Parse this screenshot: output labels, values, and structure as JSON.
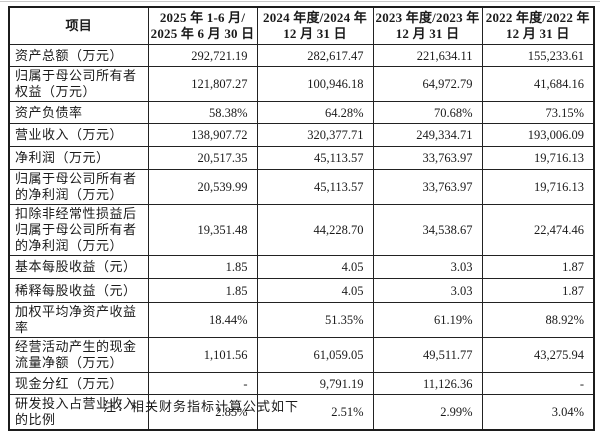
{
  "page": {
    "note": "注：相关财务指标计算公式如下"
  },
  "colors": {
    "background": "#ffffff",
    "border": "#1c1c1c",
    "text": "#1a1a1a"
  },
  "table": {
    "headers": [
      "项目",
      "2025 年 1-6 月/\n2025 年 6 月 30 日",
      "2024 年度/2024 年\n12 月 31 日",
      "2023 年度/2023 年\n12 月 31 日",
      "2022 年度/2022 年\n12 月 31 日"
    ],
    "rows": [
      {
        "label": "资产总额（万元）",
        "values": [
          "292,721.19",
          "282,617.47",
          "221,634.11",
          "155,233.61"
        ]
      },
      {
        "label": "归属于母公司所有者权益（万元）",
        "values": [
          "121,807.27",
          "100,946.18",
          "64,972.79",
          "41,684.16"
        ]
      },
      {
        "label": "资产负债率",
        "values": [
          "58.38%",
          "64.28%",
          "70.68%",
          "73.15%"
        ]
      },
      {
        "label": "营业收入（万元）",
        "values": [
          "138,907.72",
          "320,377.71",
          "249,334.71",
          "193,006.09"
        ]
      },
      {
        "label": "净利润（万元）",
        "values": [
          "20,517.35",
          "45,113.57",
          "33,763.97",
          "19,716.13"
        ]
      },
      {
        "label": "归属于母公司所有者的净利润（万元）",
        "values": [
          "20,539.99",
          "45,113.57",
          "33,763.97",
          "19,716.13"
        ]
      },
      {
        "label": "扣除非经常性损益后归属于母公司所有者的净利润（万元）",
        "values": [
          "19,351.48",
          "44,228.70",
          "34,538.67",
          "22,474.46"
        ]
      },
      {
        "label": "基本每股收益（元）",
        "values": [
          "1.85",
          "4.05",
          "3.03",
          "1.87"
        ]
      },
      {
        "label": "稀释每股收益（元）",
        "values": [
          "1.85",
          "4.05",
          "3.03",
          "1.87"
        ]
      },
      {
        "label": "加权平均净资产收益率",
        "values": [
          "18.44%",
          "51.35%",
          "61.19%",
          "88.92%"
        ]
      },
      {
        "label": "经营活动产生的现金流量净额（万元）",
        "values": [
          "1,101.56",
          "61,059.05",
          "49,511.77",
          "43,275.94"
        ]
      },
      {
        "label": "现金分红（万元）",
        "values": [
          "-",
          "9,791.19",
          "11,126.36",
          "-"
        ]
      },
      {
        "label": "研发投入占营业收入的比例",
        "values": [
          "2.85%",
          "2.51%",
          "2.99%",
          "3.04%"
        ]
      }
    ]
  }
}
